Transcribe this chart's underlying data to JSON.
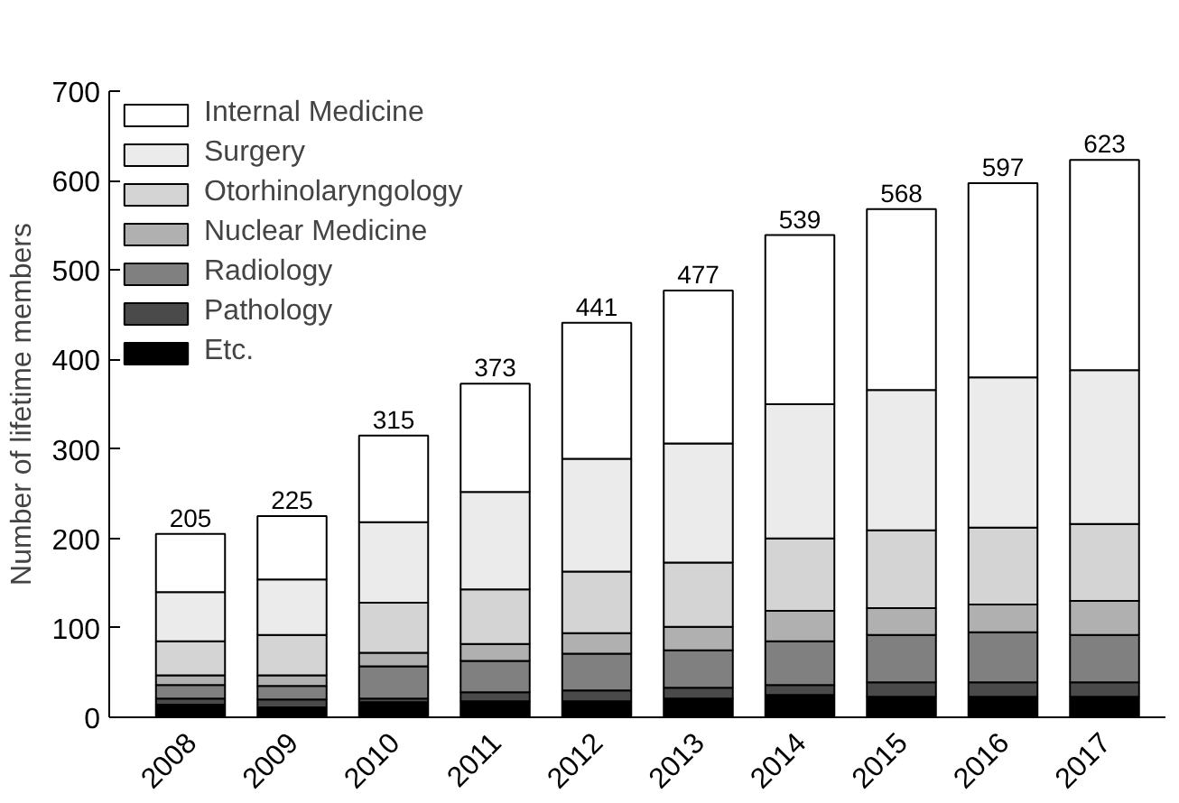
{
  "chart_data": {
    "type": "bar",
    "stacked": true,
    "ylabel": "Number of lifetime members",
    "categories": [
      "2008",
      "2009",
      "2010",
      "2011",
      "2012",
      "2013",
      "2014",
      "2015",
      "2016",
      "2017"
    ],
    "series": [
      {
        "name": "Etc.",
        "color": "#000000",
        "values": [
          14,
          11,
          17,
          18,
          18,
          21,
          25,
          23,
          23,
          23
        ]
      },
      {
        "name": "Pathology",
        "color": "#4a4a4a",
        "values": [
          7,
          9,
          4,
          10,
          12,
          12,
          11,
          16,
          16,
          16
        ]
      },
      {
        "name": "Radiology",
        "color": "#808080",
        "values": [
          15,
          15,
          36,
          35,
          41,
          42,
          49,
          53,
          56,
          53
        ]
      },
      {
        "name": "Nuclear Medicine",
        "color": "#b0b0b0",
        "values": [
          11,
          12,
          15,
          19,
          23,
          26,
          34,
          30,
          31,
          38
        ]
      },
      {
        "name": "Otorhinolaryngology",
        "color": "#d4d4d4",
        "values": [
          38,
          45,
          56,
          61,
          69,
          72,
          81,
          87,
          86,
          86
        ]
      },
      {
        "name": "Surgery",
        "color": "#ebebeb",
        "values": [
          55,
          62,
          90,
          109,
          126,
          133,
          150,
          157,
          168,
          172
        ]
      },
      {
        "name": "Internal Medicine",
        "color": "#ffffff",
        "values": [
          65,
          71,
          97,
          121,
          152,
          171,
          189,
          202,
          217,
          235
        ]
      }
    ],
    "totals": [
      "205",
      "225",
      "315",
      "373",
      "441",
      "477",
      "539",
      "568",
      "597",
      "623"
    ],
    "ylim": [
      0,
      700
    ],
    "yticks": [
      0,
      100,
      200,
      300,
      400,
      500,
      600,
      700
    ],
    "grid": false,
    "legend": "top left"
  }
}
